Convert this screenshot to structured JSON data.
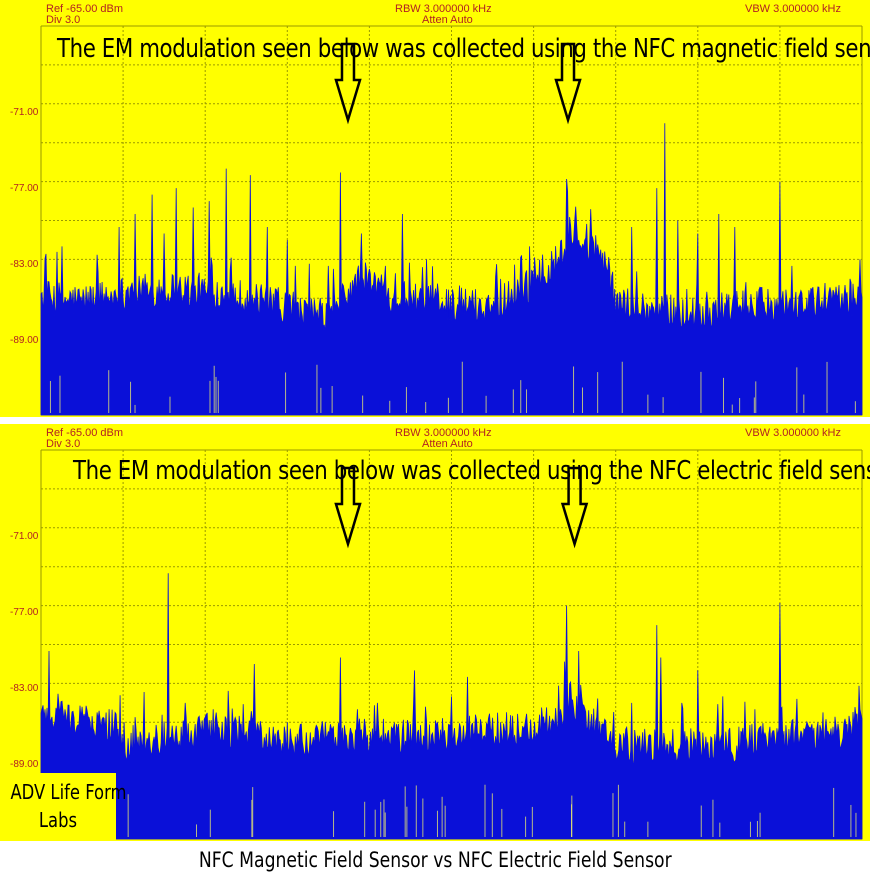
{
  "colors": {
    "panel_bg": "#ffff00",
    "grid": "#9a9a00",
    "trace": "#0a10d8",
    "header_text": "#b22222",
    "arrow": "#000000"
  },
  "chart_data": [
    {
      "type": "area",
      "instrument": {
        "ref": "Ref -65.00 dBm",
        "div": "Div 3.0",
        "rbw": "RBW 3.000000 kHz",
        "atten": "Atten Auto",
        "vbw": "VBW 3.000000 kHz"
      },
      "annotation": "The EM modulation seen below was collected using the NFC magnetic field sensor",
      "y_ticks": [
        "-71.00",
        "-77.00",
        "-83.00",
        "-89.00"
      ],
      "ylim": [
        -95,
        -65
      ],
      "ylabel": "",
      "xlabel": "",
      "grid": true,
      "arrows": [
        {
          "pointing": "down",
          "x_fraction": 0.38
        },
        {
          "pointing": "down",
          "x_fraction": 0.648
        }
      ],
      "series": [
        {
          "x_fraction": [
            0.0,
            0.05,
            0.1,
            0.15,
            0.2,
            0.25,
            0.3,
            0.35,
            0.37,
            0.39,
            0.42,
            0.45,
            0.5,
            0.55,
            0.58,
            0.6,
            0.62,
            0.64,
            0.65,
            0.67,
            0.69,
            0.7,
            0.75,
            0.8,
            0.85,
            0.9,
            0.95,
            1.0
          ],
          "floor_dbm": [
            -86.5,
            -86.8,
            -86.2,
            -85.8,
            -86.0,
            -86.5,
            -87.5,
            -88.0,
            -86.5,
            -85.0,
            -86.0,
            -86.8,
            -87.0,
            -87.2,
            -86.0,
            -85.5,
            -84.5,
            -82.5,
            -82.0,
            -83.0,
            -84.0,
            -87.0,
            -87.5,
            -87.8,
            -87.2,
            -87.0,
            -87.0,
            -86.5
          ],
          "spikes_dbm": [
            [
              0.005,
              -83.8
            ],
            [
              0.025,
              -82.0
            ],
            [
              0.07,
              -84.0
            ],
            [
              0.095,
              -80.5
            ],
            [
              0.115,
              -79.5
            ],
            [
              0.135,
              -78.0
            ],
            [
              0.15,
              -81.0
            ],
            [
              0.165,
              -77.5
            ],
            [
              0.185,
              -79.0
            ],
            [
              0.205,
              -78.5
            ],
            [
              0.225,
              -76.0
            ],
            [
              0.255,
              -76.5
            ],
            [
              0.275,
              -80.5
            ],
            [
              0.3,
              -81.5
            ],
            [
              0.31,
              -83.5
            ],
            [
              0.35,
              -83.5
            ],
            [
              0.365,
              -76.3
            ],
            [
              0.39,
              -81.0
            ],
            [
              0.42,
              -83.5
            ],
            [
              0.44,
              -79.5
            ],
            [
              0.47,
              -83.0
            ],
            [
              0.56,
              -84.5
            ],
            [
              0.595,
              -82.0
            ],
            [
              0.64,
              -76.8
            ],
            [
              0.655,
              -81.5
            ],
            [
              0.67,
              -81.0
            ],
            [
              0.69,
              -84.0
            ],
            [
              0.72,
              -80.5
            ],
            [
              0.75,
              -77.5
            ],
            [
              0.76,
              -72.5
            ],
            [
              0.775,
              -80.0
            ],
            [
              0.8,
              -81.0
            ],
            [
              0.825,
              -79.5
            ],
            [
              0.845,
              -80.5
            ],
            [
              0.9,
              -77.0
            ],
            [
              0.915,
              -83.5
            ],
            [
              0.96,
              -85.5
            ],
            [
              0.985,
              -84.5
            ],
            [
              0.997,
              -83.0
            ]
          ]
        }
      ]
    },
    {
      "type": "area",
      "instrument": {
        "ref": "Ref -65.00 dBm",
        "div": "Div 3.0",
        "rbw": "RBW 3.000000 kHz",
        "atten": "Atten Auto",
        "vbw": "VBW 3.000000 kHz"
      },
      "annotation": "The EM modulation seen below was collected using the NFC electric field sensor",
      "y_ticks": [
        "-71.00",
        "-77.00",
        "-83.00",
        "-89.00"
      ],
      "ylim": [
        -95,
        -65
      ],
      "ylabel": "",
      "xlabel": "",
      "grid": true,
      "arrows": [
        {
          "pointing": "down",
          "x_fraction": 0.38
        },
        {
          "pointing": "down",
          "x_fraction": 0.656
        }
      ],
      "series": [
        {
          "x_fraction": [
            0.0,
            0.05,
            0.09,
            0.1,
            0.15,
            0.2,
            0.25,
            0.3,
            0.35,
            0.4,
            0.45,
            0.5,
            0.55,
            0.6,
            0.63,
            0.64,
            0.66,
            0.68,
            0.7,
            0.75,
            0.8,
            0.85,
            0.9,
            0.95,
            1.0
          ],
          "floor_dbm": [
            -86.0,
            -86.5,
            -87.0,
            -88.2,
            -87.8,
            -87.2,
            -87.3,
            -88.2,
            -87.8,
            -87.6,
            -87.8,
            -87.5,
            -87.2,
            -87.0,
            -86.5,
            -85.0,
            -86.0,
            -87.0,
            -88.2,
            -88.5,
            -88.3,
            -88.2,
            -87.8,
            -87.6,
            -87.0
          ],
          "spikes_dbm": [
            [
              0.005,
              -85.0
            ],
            [
              0.01,
              -80.5
            ],
            [
              0.03,
              -85.5
            ],
            [
              0.06,
              -86.0
            ],
            [
              0.155,
              -74.5
            ],
            [
              0.175,
              -84.5
            ],
            [
              0.21,
              -85.0
            ],
            [
              0.26,
              -81.5
            ],
            [
              0.3,
              -86.0
            ],
            [
              0.365,
              -81.0
            ],
            [
              0.385,
              -85.0
            ],
            [
              0.41,
              -84.5
            ],
            [
              0.455,
              -82.0
            ],
            [
              0.5,
              -84.0
            ],
            [
              0.52,
              -82.5
            ],
            [
              0.56,
              -86.0
            ],
            [
              0.62,
              -85.5
            ],
            [
              0.64,
              -77.0
            ],
            [
              0.655,
              -80.5
            ],
            [
              0.68,
              -86.0
            ],
            [
              0.72,
              -84.5
            ],
            [
              0.75,
              -78.5
            ],
            [
              0.755,
              -81.0
            ],
            [
              0.78,
              -84.5
            ],
            [
              0.8,
              -82.0
            ],
            [
              0.83,
              -84.0
            ],
            [
              0.87,
              -85.0
            ],
            [
              0.9,
              -76.8
            ],
            [
              0.915,
              -86.0
            ],
            [
              0.95,
              -86.5
            ],
            [
              0.997,
              -85.0
            ]
          ]
        }
      ]
    }
  ],
  "logo": {
    "line1": "ADV Life Form",
    "line2": "Labs"
  },
  "figure_caption": "NFC Magnetic Field Sensor vs NFC Electric Field Sensor"
}
